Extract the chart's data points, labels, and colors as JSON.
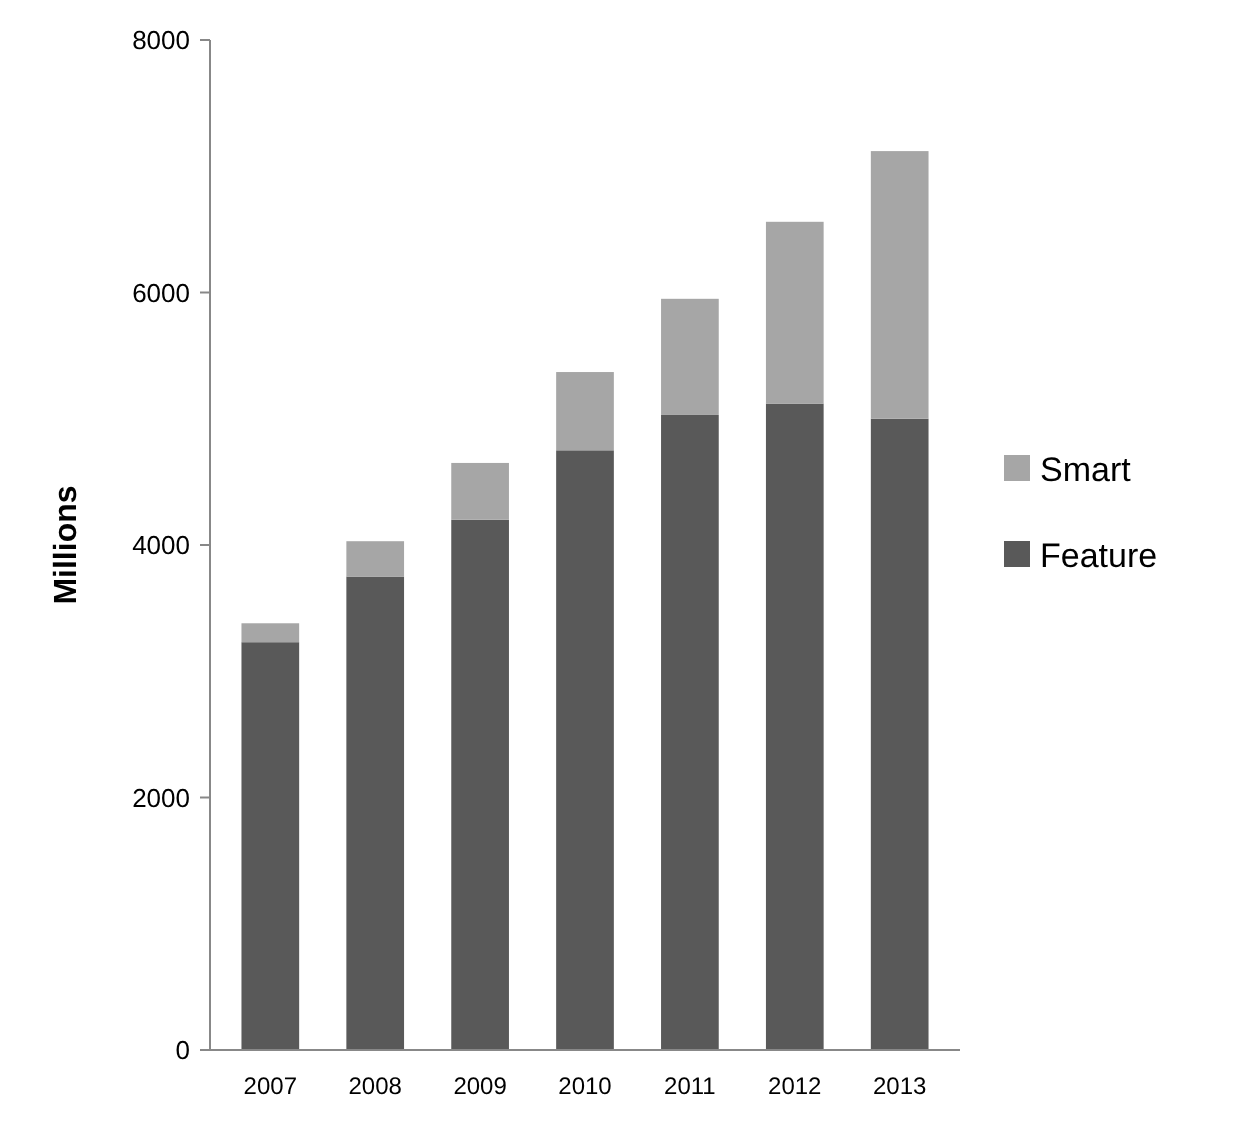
{
  "chart_data": {
    "type": "bar",
    "ylabel": "Millions",
    "categories": [
      "2007",
      "2008",
      "2009",
      "2010",
      "2011",
      "2012",
      "2013"
    ],
    "stacked": true,
    "series": [
      {
        "name": "Feature",
        "color": "#595959",
        "values": [
          3230,
          3750,
          4200,
          4750,
          5030,
          5120,
          5000
        ]
      },
      {
        "name": "Smart",
        "color": "#a6a6a6",
        "values": [
          150,
          280,
          450,
          620,
          920,
          1440,
          2120
        ]
      }
    ],
    "ylim": [
      0,
      8000
    ],
    "yticks": [
      0,
      2000,
      4000,
      6000,
      8000
    ],
    "legend": "right"
  }
}
